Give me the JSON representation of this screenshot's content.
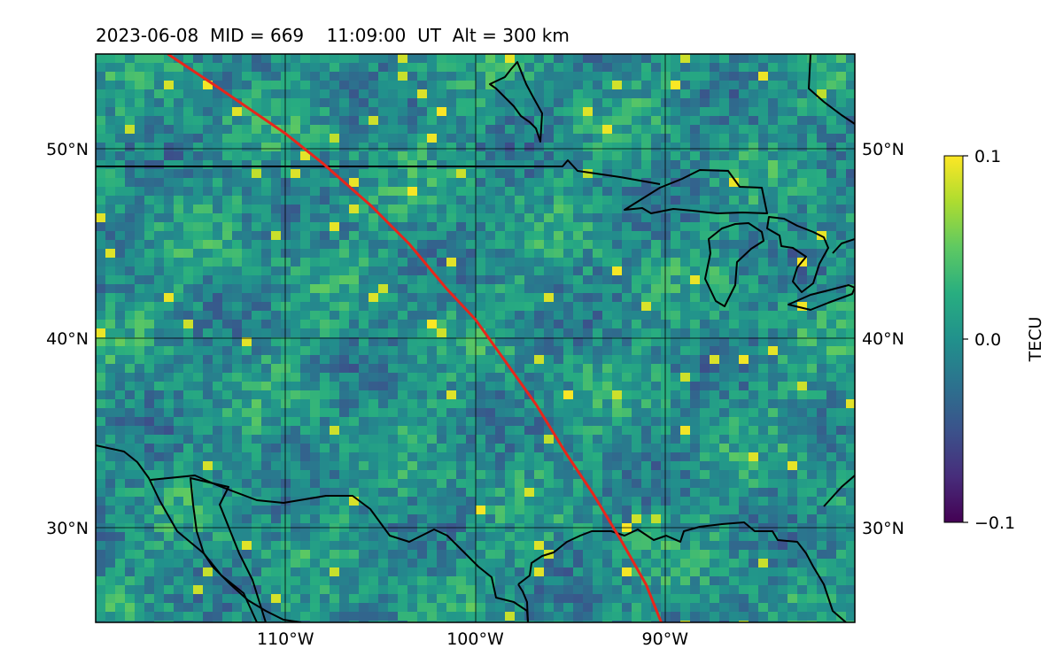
{
  "title": "2023-06-08  MID = 669    11:09:00  UT  Alt = 300 km",
  "map": {
    "projection": "plate-carree",
    "lon_range": [
      -120,
      -80
    ],
    "lat_range": [
      25,
      55
    ],
    "lat_ticks": [
      {
        "value": 50,
        "label": "50°N"
      },
      {
        "value": 40,
        "label": "40°N"
      },
      {
        "value": 30,
        "label": "30°N"
      }
    ],
    "lon_ticks": [
      {
        "value": -110,
        "label": "110°W"
      },
      {
        "value": -100,
        "label": "100°W"
      },
      {
        "value": -90,
        "label": "90°W"
      }
    ],
    "track_color": "#e8261b",
    "track": [
      [
        -116.2,
        55.0
      ],
      [
        -113.5,
        53.2
      ],
      [
        -110.0,
        50.8
      ],
      [
        -108.0,
        49.2
      ],
      [
        -105.5,
        47.0
      ],
      [
        -103.5,
        45.0
      ],
      [
        -101.5,
        42.6
      ],
      [
        -100.0,
        41.0
      ],
      [
        -98.5,
        38.9
      ],
      [
        -96.8,
        36.5
      ],
      [
        -95.2,
        33.9
      ],
      [
        -93.8,
        31.8
      ],
      [
        -92.3,
        29.3
      ],
      [
        -91.0,
        27.0
      ],
      [
        -90.2,
        25.0
      ]
    ]
  },
  "colorbar": {
    "label": "TECU",
    "colormap": "viridis",
    "min": -0.1,
    "max": 0.1,
    "ticks": [
      {
        "value": 0.1,
        "label": "0.1"
      },
      {
        "value": 0.0,
        "label": "0.0"
      },
      {
        "value": -0.1,
        "label": "−0.1"
      }
    ]
  }
}
